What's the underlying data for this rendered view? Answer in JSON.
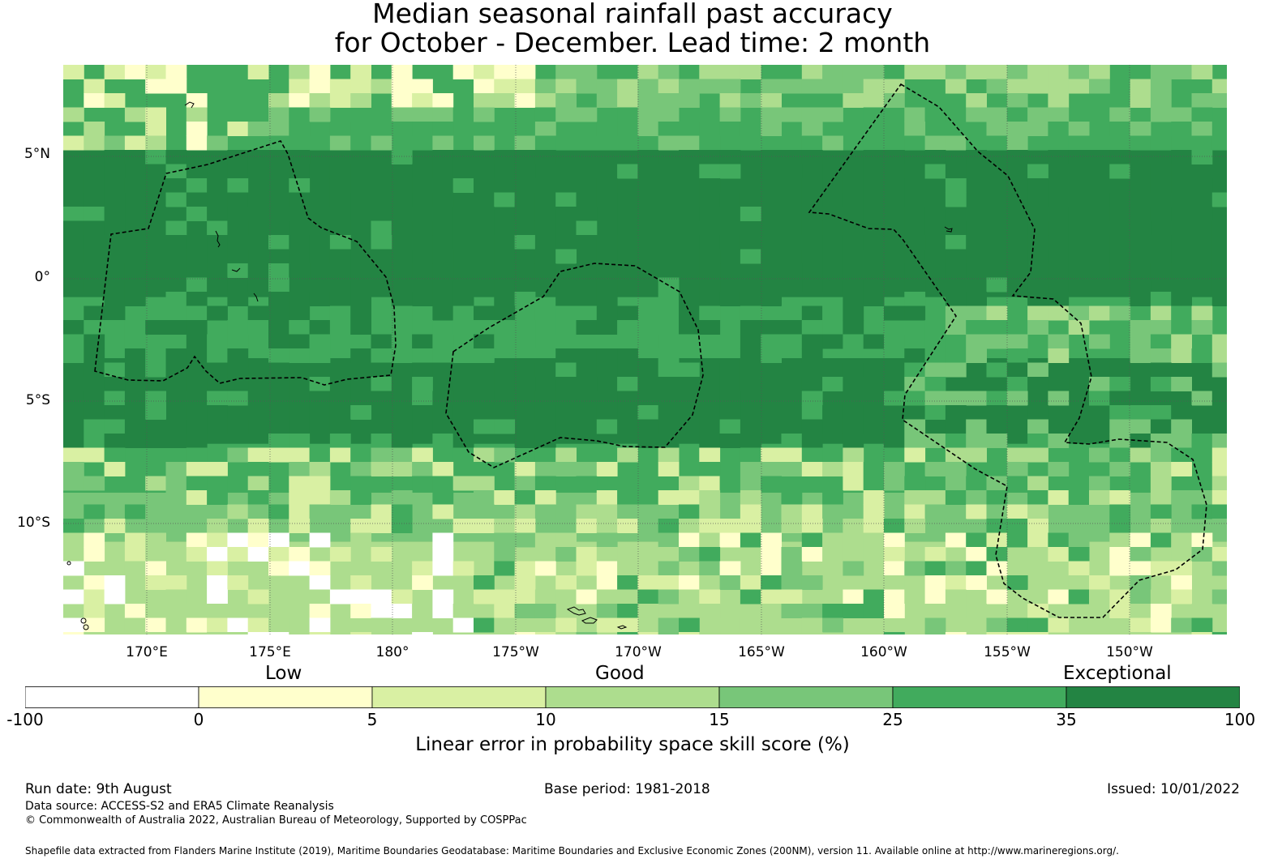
{
  "title": {
    "line1": "Median seasonal rainfall past accuracy",
    "line2": "for October - December. Lead time: 2 month"
  },
  "map": {
    "lat_labels": [
      "5°N",
      "0°",
      "5°S",
      "10°S"
    ],
    "lon_labels": [
      "170°E",
      "175°E",
      "180°",
      "175°W",
      "170°W",
      "165°W",
      "160°W",
      "155°W",
      "150°W"
    ],
    "bands": [
      {
        "lat_top": 8.5,
        "lat_bottom": 5.0,
        "color": "#41ab5d"
      },
      {
        "lat_top": 5.0,
        "lat_bottom": -1.0,
        "color": "#238443"
      },
      {
        "lat_top": -1.0,
        "lat_bottom": -3.5,
        "color": "#41ab5d"
      },
      {
        "lat_top": -3.5,
        "lat_bottom": -7.0,
        "color": "#238443"
      },
      {
        "lat_top": -7.0,
        "lat_bottom": -9.0,
        "color": "#41ab5d"
      },
      {
        "lat_top": -9.0,
        "lat_bottom": -11.0,
        "color": "#78c679"
      },
      {
        "lat_top": -11.0,
        "lat_bottom": -14.8,
        "color": "#addd8e"
      }
    ]
  },
  "legend": {
    "categories": [
      "Low",
      "Good",
      "Exceptional"
    ],
    "boundaries": [
      "-100",
      "0",
      "5",
      "10",
      "15",
      "25",
      "35",
      "100"
    ],
    "colors": [
      "#ffffff",
      "#ffffcc",
      "#d9f0a3",
      "#addd8e",
      "#78c679",
      "#41ab5d",
      "#238443"
    ],
    "title": "Linear error in probability space skill score (%)"
  },
  "footer": {
    "run_date": "Run date: 9th August",
    "base_period": "Base period: 1981-2018",
    "issued": "Issued: 10/01/2022",
    "data_source": "Data source: ACCESS-S2 and ERA5 Climate Reanalysis",
    "copyright": "© Commonwealth of Australia 2022, Australian Bureau of Meteorology, Supported by COSPPac",
    "shapefile": "Shapefile data extracted from Flanders Marine Institute (2019), Maritime Boundaries Geodatabase: Maritime Boundaries and Exclusive Economic Zones (200NM), version 11. Available online at http://www.marineregions.org/."
  }
}
